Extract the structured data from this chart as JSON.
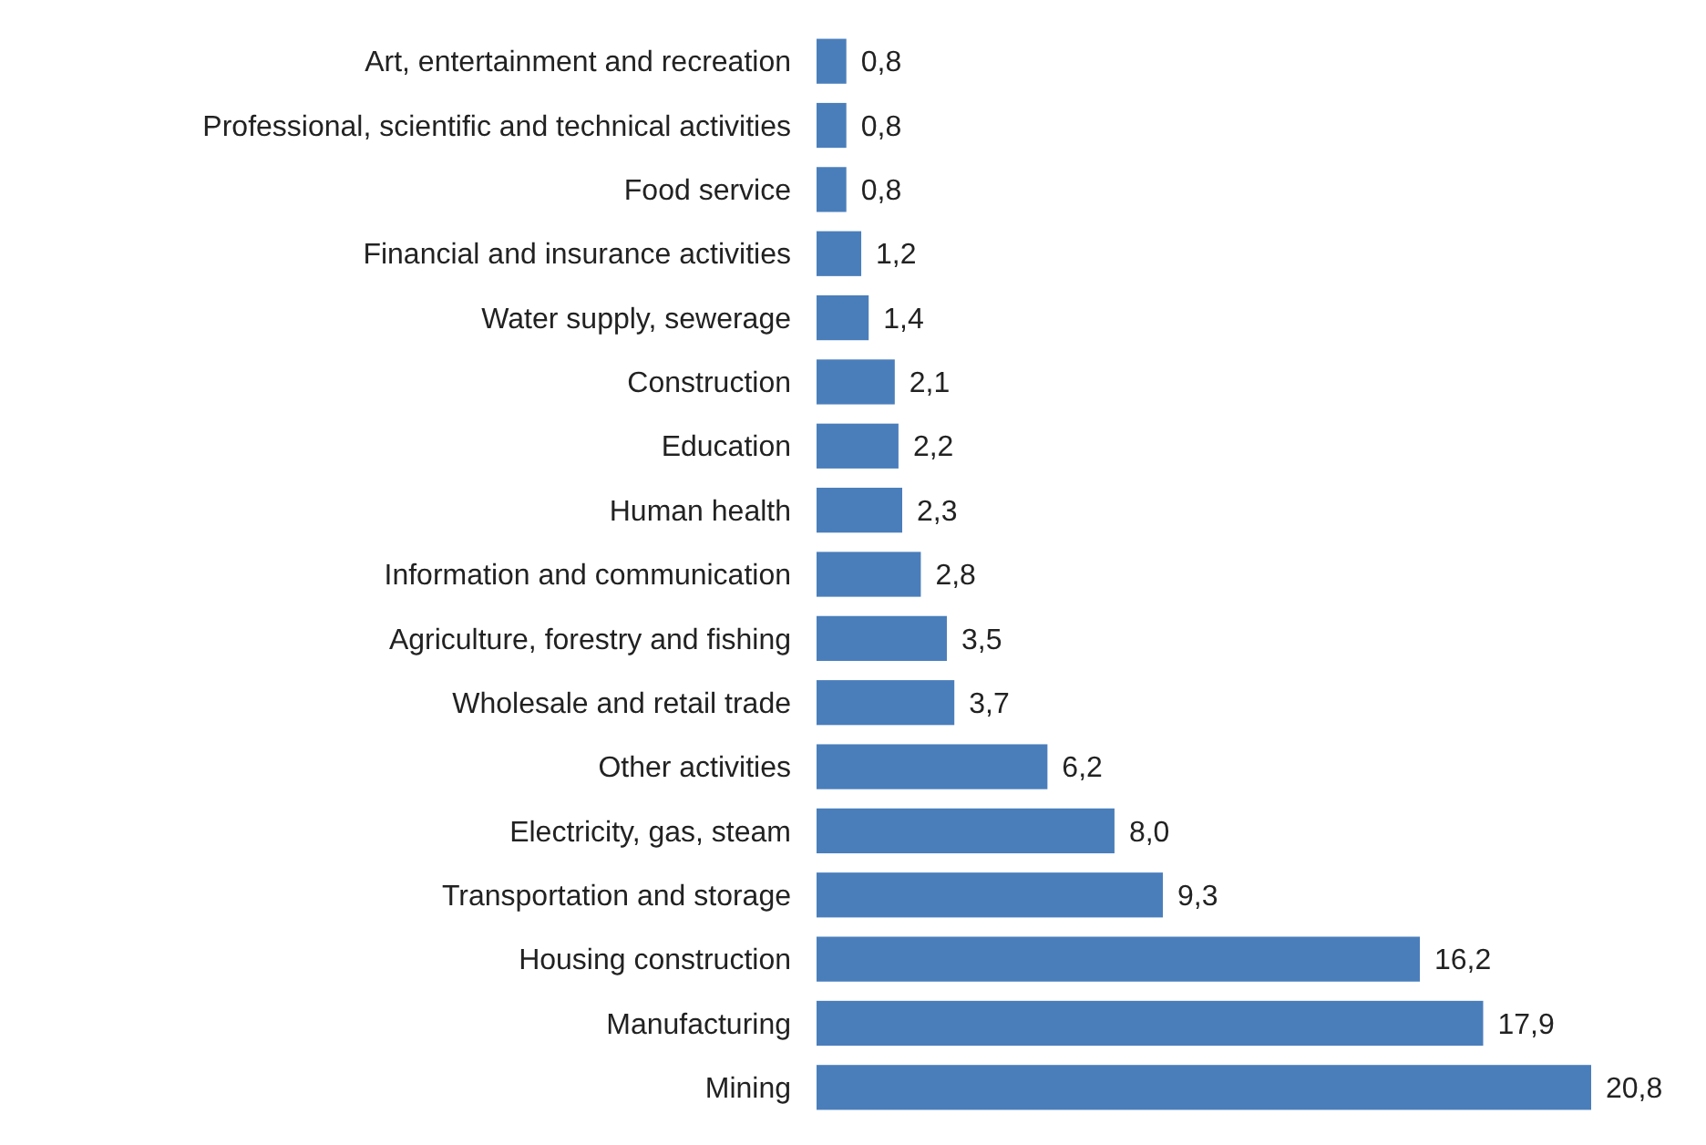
{
  "chart_data": {
    "type": "bar",
    "orientation": "horizontal",
    "color": "#4a7ebb",
    "categories": [
      "Art, entertainment and recreation",
      "Professional, scientific and technical activities",
      "Food service",
      "Financial and insurance activities",
      "Water supply, sewerage",
      "Construction",
      "Education",
      "Human health",
      "Information and communication",
      "Agriculture, forestry and fishing",
      "Wholesale and retail trade",
      "Other activities",
      "Electricity, gas, steam",
      "Transportation and storage",
      "Housing construction",
      "Manufacturing",
      "Mining"
    ],
    "values": [
      0.8,
      0.8,
      0.8,
      1.2,
      1.4,
      2.1,
      2.2,
      2.3,
      2.8,
      3.5,
      3.7,
      6.2,
      8.0,
      9.3,
      16.2,
      17.9,
      20.8
    ],
    "value_labels": [
      "0,8",
      "0,8",
      "0,8",
      "1,2",
      "1,4",
      "2,1",
      "2,2",
      "2,3",
      "2,8",
      "3,5",
      "3,7",
      "6,2",
      "8,0",
      "9,3",
      "16,2",
      "17,9",
      "20,8"
    ]
  }
}
